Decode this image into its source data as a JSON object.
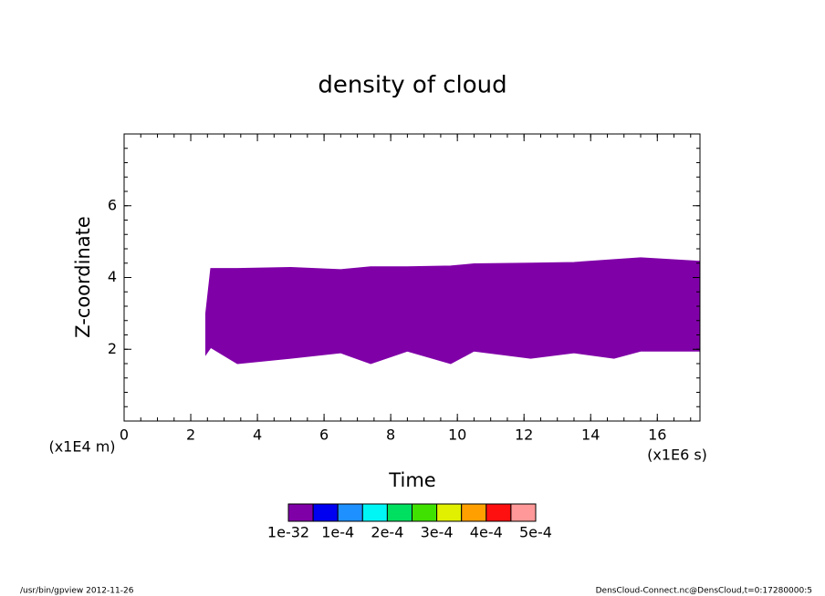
{
  "chart_data": {
    "type": "range",
    "title": "density of cloud",
    "x_label": "Time",
    "y_label": "Z-coordinate",
    "x_unit": "(x1E6 s)",
    "y_unit": "(x1E4 m)",
    "x": [
      2.45,
      2.6,
      3.4,
      5.0,
      6.5,
      7.4,
      8.5,
      9.8,
      10.5,
      12.2,
      13.5,
      14.7,
      15.5,
      17.28
    ],
    "upper": [
      3.0,
      4.25,
      4.25,
      4.28,
      4.22,
      4.3,
      4.3,
      4.32,
      4.38,
      4.4,
      4.42,
      4.5,
      4.55,
      4.45
    ],
    "lower": [
      1.85,
      2.05,
      1.6,
      1.75,
      1.9,
      1.6,
      1.95,
      1.6,
      1.95,
      1.75,
      1.9,
      1.75,
      1.95,
      1.95
    ],
    "color": "#8000a8",
    "xlim": [
      0,
      17.28
    ],
    "ylim": [
      0,
      8
    ],
    "xticks": [
      0,
      2,
      4,
      6,
      8,
      10,
      12,
      14,
      16
    ],
    "yticks": [
      2,
      4,
      6
    ],
    "colorbar": {
      "colors": [
        "#8000a8",
        "#0000f0",
        "#1e90ff",
        "#00f5f5",
        "#00e060",
        "#40e000",
        "#e0f000",
        "#ffa000",
        "#ff1010",
        "#ff9898"
      ],
      "ticks": [
        {
          "value": 1e-32,
          "label": "1e-32"
        },
        {
          "value": 0.0001,
          "label": "1e-4"
        },
        {
          "value": 0.0002,
          "label": "2e-4"
        },
        {
          "value": 0.0003,
          "label": "3e-4"
        },
        {
          "value": 0.0004,
          "label": "4e-4"
        },
        {
          "value": 0.0005,
          "label": "5e-4"
        }
      ]
    },
    "footer_left": "/usr/bin/gpview  2012-11-26",
    "footer_right": "DensCloud-Connect.nc@DensCloud,t=0:17280000:5"
  }
}
